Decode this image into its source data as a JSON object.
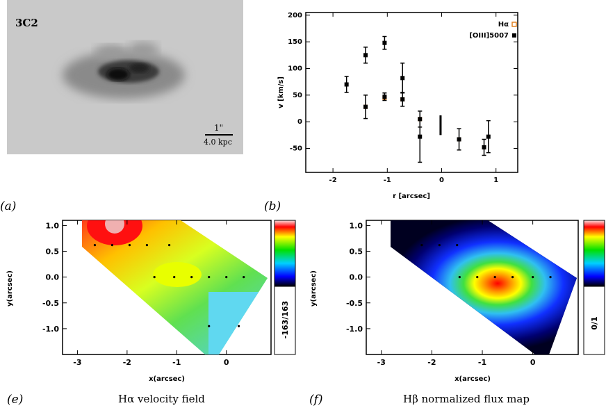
{
  "galaxy": {
    "label": "3C2",
    "scale_top": "1\"",
    "scale_bottom": "4.0 kpc"
  },
  "panel_labels": {
    "a": "(a)",
    "b": "(b)",
    "e": "(e)",
    "f": "(f)"
  },
  "captions": {
    "e": "Hα velocity field",
    "f": "Hβ normalized flux map"
  },
  "colors": {
    "halpha": "#e08020",
    "oiii": "#000000",
    "background": "#c9c9c9"
  },
  "chart_data": [
    {
      "type": "scatter",
      "xlabel": "r [arcsec]",
      "ylabel": "v [km/s]",
      "xlim": [
        -2.5,
        1.4
      ],
      "ylim": [
        -95,
        205
      ],
      "xticks": [
        -2,
        -1,
        0,
        1
      ],
      "yticks": [
        -50,
        0,
        50,
        100,
        150,
        200
      ],
      "ytick_labels": [
        "-50",
        "0",
        "50",
        "100",
        "150",
        "200"
      ],
      "legend_position": "top-right",
      "series": [
        {
          "name": "Hα",
          "color": "#e08020",
          "points": [
            {
              "x": -1.4,
              "y": 28,
              "err": 0
            },
            {
              "x": -1.05,
              "y": 45,
              "err": 0
            },
            {
              "x": -0.72,
              "y": 42,
              "err": 0
            },
            {
              "x": -0.4,
              "y": 5,
              "err": 0
            },
            {
              "x": 0.32,
              "y": -33,
              "err": 0
            },
            {
              "x": 0.78,
              "y": -48,
              "err": 0
            }
          ]
        },
        {
          "name": "[OIII]5007",
          "color": "#000000",
          "points": [
            {
              "x": -1.75,
              "y": 70,
              "err": 15
            },
            {
              "x": -1.4,
              "y": 125,
              "err": 15
            },
            {
              "x": -1.4,
              "y": 28,
              "err": 22
            },
            {
              "x": -1.05,
              "y": 148,
              "err": 12
            },
            {
              "x": -1.05,
              "y": 47,
              "err": 7
            },
            {
              "x": -0.72,
              "y": 82,
              "err": 28
            },
            {
              "x": -0.72,
              "y": 42,
              "err": 13
            },
            {
              "x": -0.4,
              "y": -28,
              "err": 48
            },
            {
              "x": -0.4,
              "y": 5,
              "err": 15
            },
            {
              "x": 0.32,
              "y": -33,
              "err": 20
            },
            {
              "x": 0.78,
              "y": -48,
              "err": 15
            },
            {
              "x": 0.86,
              "y": -28,
              "err": 30
            }
          ]
        }
      ]
    },
    {
      "type": "heatmap",
      "caption": "Hα velocity field",
      "xlabel": "x(arcsec)",
      "ylabel": "y(arcsec)",
      "xlim": [
        -3.3,
        0.9
      ],
      "ylim": [
        -1.5,
        1.1
      ],
      "xticks": [
        -3,
        -2,
        -1,
        0
      ],
      "yticks": [
        1.0,
        0.5,
        0.0,
        -0.5,
        -1.0
      ],
      "ytick_labels": [
        "1.0",
        "0.5",
        "0.0",
        "-0.5",
        "-1.0"
      ],
      "colorbar_range": "-163/163",
      "sample_points": [
        {
          "x": -2.65,
          "y": 0.62
        },
        {
          "x": -2.3,
          "y": 0.62
        },
        {
          "x": -1.95,
          "y": 0.62
        },
        {
          "x": -1.6,
          "y": 0.62
        },
        {
          "x": -1.15,
          "y": 0.62
        },
        {
          "x": -1.45,
          "y": 0.0
        },
        {
          "x": -1.05,
          "y": 0.0
        },
        {
          "x": -0.7,
          "y": 0.0
        },
        {
          "x": -0.35,
          "y": 0.0
        },
        {
          "x": 0.0,
          "y": 0.0
        },
        {
          "x": 0.35,
          "y": 0.0
        },
        {
          "x": -0.35,
          "y": -0.95
        },
        {
          "x": 0.25,
          "y": -0.95
        }
      ]
    },
    {
      "type": "heatmap",
      "caption": "Hβ normalized flux map",
      "xlabel": "x(arcsec)",
      "ylabel": "y(arcsec)",
      "xlim": [
        -3.3,
        0.9
      ],
      "ylim": [
        -1.5,
        1.1
      ],
      "xticks": [
        -3,
        -2,
        -1,
        0
      ],
      "yticks": [
        1.0,
        0.5,
        0.0,
        -0.5,
        -1.0
      ],
      "ytick_labels": [
        "1.0",
        "0.5",
        "0.0",
        "-0.5",
        "-1.0"
      ],
      "colorbar_range": "0/1",
      "sample_points": [
        {
          "x": -2.2,
          "y": 0.62
        },
        {
          "x": -1.85,
          "y": 0.62
        },
        {
          "x": -1.5,
          "y": 0.62
        },
        {
          "x": -1.45,
          "y": 0.0
        },
        {
          "x": -1.1,
          "y": 0.0
        },
        {
          "x": -0.75,
          "y": 0.0
        },
        {
          "x": -0.4,
          "y": 0.0
        },
        {
          "x": 0.0,
          "y": 0.0
        },
        {
          "x": 0.35,
          "y": 0.0
        }
      ]
    }
  ]
}
